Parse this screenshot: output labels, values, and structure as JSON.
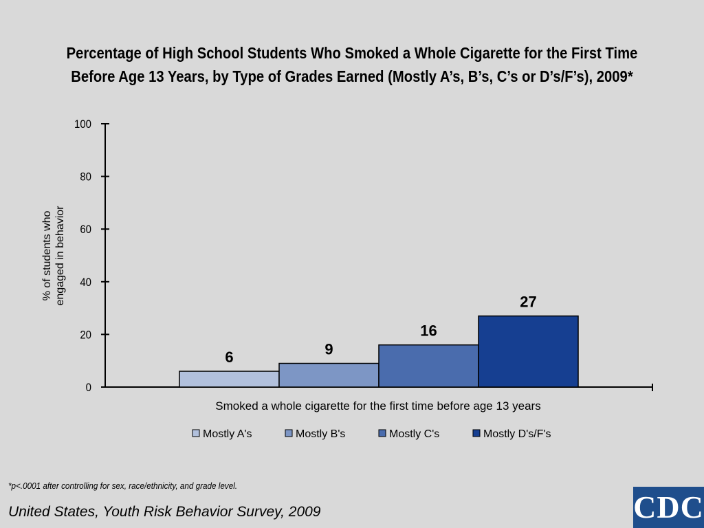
{
  "title_line1": "Percentage of High School Students Who Smoked a Whole Cigarette for the First Time",
  "title_line2": "Before Age 13 Years, by Type of Grades Earned (Mostly A’s, B’s, C’s or D’s/F’s), 2009*",
  "footnote": "*p<.0001 after controlling for sex, race/ethnicity, and grade level.",
  "source": "United States, Youth Risk Behavior Survey, 2009",
  "logo_text": "CDC",
  "chart_data": {
    "type": "bar",
    "categories": [
      "Smoked a whole cigarette for the first time before age 13 years"
    ],
    "series": [
      {
        "name": "Mostly A's",
        "values": [
          6
        ],
        "color": "#b1c0dc"
      },
      {
        "name": "Mostly B's",
        "values": [
          9
        ],
        "color": "#7d96c5"
      },
      {
        "name": "Mostly C's",
        "values": [
          16
        ],
        "color": "#4a6cad"
      },
      {
        "name": "Mostly D's/F's",
        "values": [
          27
        ],
        "color": "#163f91"
      }
    ],
    "data_labels": [
      "6",
      "9",
      "16",
      "27"
    ],
    "xlabel": "Smoked a whole cigarette for the first time before age 13 years",
    "ylabel_line1": "% of students who",
    "ylabel_line2": "engaged in behavior",
    "yticks": [
      "0",
      "20",
      "40",
      "60",
      "80",
      "100"
    ],
    "ylim": [
      0,
      100
    ],
    "grid": false,
    "legend_position": "bottom"
  }
}
